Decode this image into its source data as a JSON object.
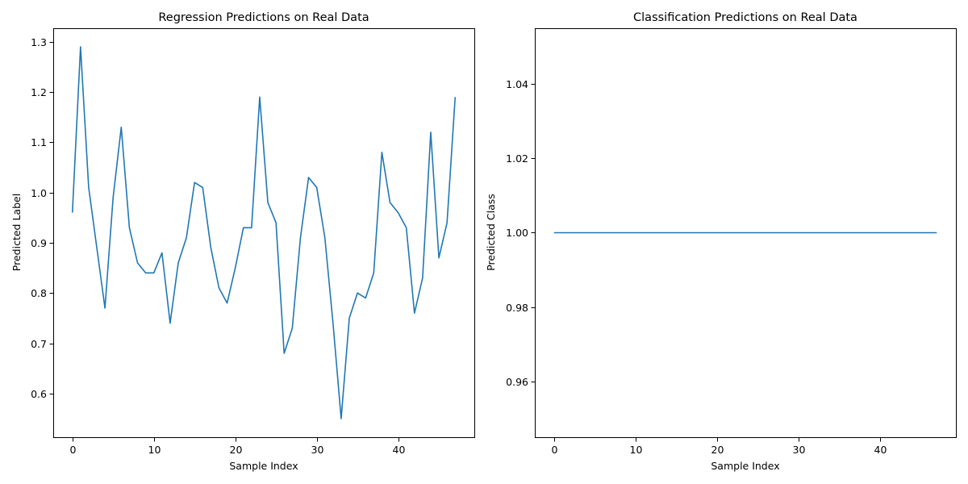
{
  "chart_data": [
    {
      "type": "line",
      "title": "Regression Predictions on Real Data",
      "xlabel": "Sample Index",
      "ylabel": "Predicted Label",
      "xlim": [
        -2.35,
        49.35
      ],
      "ylim": [
        0.513,
        1.327
      ],
      "xticks": [
        0,
        10,
        20,
        30,
        40
      ],
      "xtick_labels": [
        "0",
        "10",
        "20",
        "30",
        "40"
      ],
      "yticks": [
        0.6,
        0.7,
        0.8,
        0.9,
        1.0,
        1.1,
        1.2,
        1.3
      ],
      "ytick_labels": [
        "0.6",
        "0.7",
        "0.8",
        "0.9",
        "1.0",
        "1.1",
        "1.2",
        "1.3"
      ],
      "grid": false,
      "color": "#1f77b4",
      "series": [
        {
          "x": [
            0,
            1,
            2,
            3,
            4,
            5,
            6,
            7,
            8,
            9,
            10,
            11,
            12,
            13,
            14,
            15,
            16,
            17,
            18,
            19,
            20,
            21,
            22,
            23,
            24,
            25,
            26,
            27,
            28,
            29,
            30,
            31,
            32,
            33,
            34,
            35,
            36,
            37,
            38,
            39,
            40,
            41,
            42,
            43,
            44,
            45,
            46,
            47
          ],
          "y": [
            0.96,
            1.29,
            1.01,
            0.89,
            0.77,
            0.99,
            1.13,
            0.93,
            0.86,
            0.84,
            0.84,
            0.88,
            0.74,
            0.86,
            0.91,
            1.02,
            1.01,
            0.89,
            0.81,
            0.78,
            0.85,
            0.93,
            0.93,
            1.19,
            0.98,
            0.94,
            0.68,
            0.73,
            0.91,
            1.03,
            1.01,
            0.91,
            0.74,
            0.55,
            0.75,
            0.8,
            0.79,
            0.84,
            1.08,
            0.98,
            0.96,
            0.93,
            0.76,
            0.83,
            1.12,
            0.87,
            0.94,
            1.19
          ]
        }
      ]
    },
    {
      "type": "line",
      "title": "Classification Predictions on Real Data",
      "xlabel": "Sample Index",
      "ylabel": "Predicted Class",
      "xlim": [
        -2.35,
        49.35
      ],
      "ylim": [
        0.945,
        1.055
      ],
      "xticks": [
        0,
        10,
        20,
        30,
        40
      ],
      "xtick_labels": [
        "0",
        "10",
        "20",
        "30",
        "40"
      ],
      "yticks": [
        0.96,
        0.98,
        1.0,
        1.02,
        1.04
      ],
      "ytick_labels": [
        "0.96",
        "0.98",
        "1.00",
        "1.02",
        "1.04"
      ],
      "grid": false,
      "color": "#1f77b4",
      "series": [
        {
          "x": [
            0,
            1,
            2,
            3,
            4,
            5,
            6,
            7,
            8,
            9,
            10,
            11,
            12,
            13,
            14,
            15,
            16,
            17,
            18,
            19,
            20,
            21,
            22,
            23,
            24,
            25,
            26,
            27,
            28,
            29,
            30,
            31,
            32,
            33,
            34,
            35,
            36,
            37,
            38,
            39,
            40,
            41,
            42,
            43,
            44,
            45,
            46,
            47
          ],
          "y": [
            1,
            1,
            1,
            1,
            1,
            1,
            1,
            1,
            1,
            1,
            1,
            1,
            1,
            1,
            1,
            1,
            1,
            1,
            1,
            1,
            1,
            1,
            1,
            1,
            1,
            1,
            1,
            1,
            1,
            1,
            1,
            1,
            1,
            1,
            1,
            1,
            1,
            1,
            1,
            1,
            1,
            1,
            1,
            1,
            1,
            1,
            1,
            1
          ]
        }
      ]
    }
  ]
}
